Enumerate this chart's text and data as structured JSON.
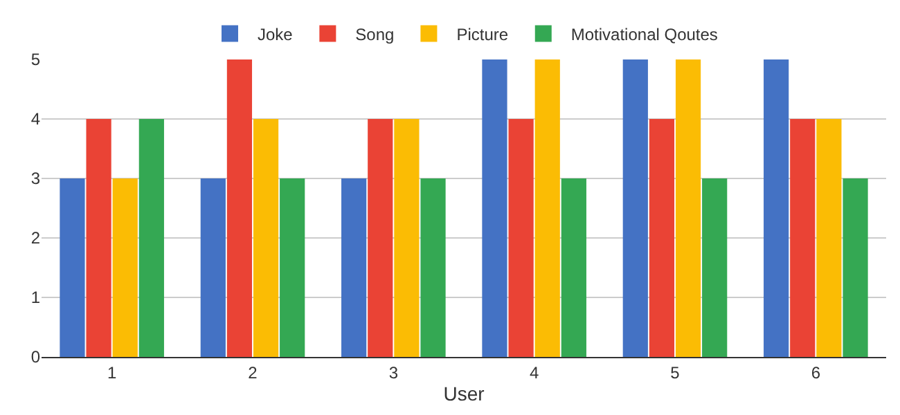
{
  "chart_data": {
    "type": "bar",
    "xlabel": "User",
    "categories": [
      "1",
      "2",
      "3",
      "4",
      "5",
      "6"
    ],
    "series": [
      {
        "name": "Joke",
        "color": "#4472c4",
        "values": [
          3,
          3,
          3,
          5,
          5,
          5
        ]
      },
      {
        "name": "Song",
        "color": "#ea4335",
        "values": [
          4,
          5,
          4,
          4,
          4,
          4
        ]
      },
      {
        "name": "Picture",
        "color": "#fbbc04",
        "values": [
          3,
          4,
          4,
          5,
          5,
          4
        ]
      },
      {
        "name": "Motivational Qoutes",
        "color": "#34a853",
        "values": [
          4,
          3,
          3,
          3,
          3,
          3
        ]
      }
    ],
    "ylim": [
      0,
      5
    ],
    "yticks": [
      0,
      1,
      2,
      3,
      4,
      5
    ],
    "grid": "y",
    "legend": "top"
  }
}
